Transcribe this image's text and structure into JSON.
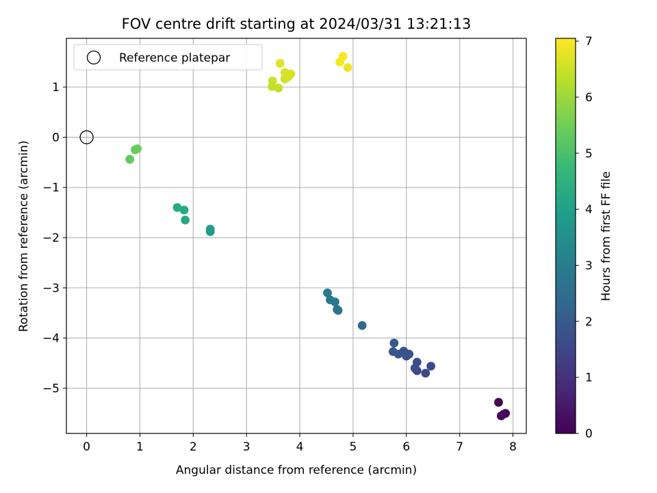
{
  "chart_data": {
    "type": "scatter",
    "title": "FOV centre drift starting at 2024/03/31 13:21:13",
    "xlabel": "Angular distance from reference (arcmin)",
    "ylabel": "Rotation from reference (arcmin)",
    "xlim": [
      -0.38,
      8.25
    ],
    "ylim": [
      -5.9,
      1.97
    ],
    "xticks": [
      0,
      1,
      2,
      3,
      4,
      5,
      6,
      7,
      8
    ],
    "yticks": [
      -5,
      -4,
      -3,
      -2,
      -1,
      0,
      1
    ],
    "xtick_labels": [
      "0",
      "1",
      "2",
      "3",
      "4",
      "5",
      "6",
      "7",
      "8"
    ],
    "ytick_labels": [
      "−5",
      "−4",
      "−3",
      "−2",
      "−1",
      "0",
      "1"
    ],
    "grid": true,
    "legend": {
      "placement": "top-left",
      "entries": [
        "Reference platepar"
      ]
    },
    "reference_point": {
      "x": 0,
      "y": 0,
      "marker": "open-circle"
    },
    "colorbar": {
      "label": "Hours from first FF file",
      "min": 0,
      "max": 7.05,
      "ticks": [
        0,
        1,
        2,
        3,
        4,
        5,
        6,
        7
      ],
      "tick_labels": [
        "0",
        "1",
        "2",
        "3",
        "4",
        "5",
        "6",
        "7"
      ],
      "colormap": "viridis"
    },
    "points": [
      {
        "x": 7.73,
        "y": -5.28,
        "c": 0.05
      },
      {
        "x": 7.78,
        "y": -5.55,
        "c": 0.1
      },
      {
        "x": 7.86,
        "y": -5.5,
        "c": 0.15
      },
      {
        "x": 7.82,
        "y": -5.52,
        "c": 0.2
      },
      {
        "x": 6.36,
        "y": -4.7,
        "c": 1.5
      },
      {
        "x": 6.46,
        "y": -4.56,
        "c": 1.6
      },
      {
        "x": 6.2,
        "y": -4.65,
        "c": 1.55
      },
      {
        "x": 6.16,
        "y": -4.6,
        "c": 1.65
      },
      {
        "x": 6.2,
        "y": -4.48,
        "c": 1.7
      },
      {
        "x": 6.05,
        "y": -4.32,
        "c": 1.75
      },
      {
        "x": 6.0,
        "y": -4.36,
        "c": 1.8
      },
      {
        "x": 5.95,
        "y": -4.26,
        "c": 1.85
      },
      {
        "x": 5.85,
        "y": -4.32,
        "c": 1.9
      },
      {
        "x": 5.75,
        "y": -4.27,
        "c": 1.95
      },
      {
        "x": 5.77,
        "y": -4.1,
        "c": 2.0
      },
      {
        "x": 5.17,
        "y": -3.75,
        "c": 2.4
      },
      {
        "x": 4.72,
        "y": -3.45,
        "c": 2.7
      },
      {
        "x": 4.7,
        "y": -3.43,
        "c": 2.72
      },
      {
        "x": 4.66,
        "y": -3.28,
        "c": 2.78
      },
      {
        "x": 4.57,
        "y": -3.24,
        "c": 2.82
      },
      {
        "x": 4.52,
        "y": -3.1,
        "c": 2.88
      },
      {
        "x": 2.32,
        "y": -1.88,
        "c": 3.9
      },
      {
        "x": 2.32,
        "y": -1.83,
        "c": 3.95
      },
      {
        "x": 1.85,
        "y": -1.65,
        "c": 4.2
      },
      {
        "x": 1.83,
        "y": -1.45,
        "c": 4.25
      },
      {
        "x": 1.7,
        "y": -1.4,
        "c": 4.3
      },
      {
        "x": 0.81,
        "y": -0.44,
        "c": 5.3
      },
      {
        "x": 0.91,
        "y": -0.25,
        "c": 5.35
      },
      {
        "x": 0.95,
        "y": -0.23,
        "c": 5.4
      },
      {
        "x": 3.48,
        "y": 1.01,
        "c": 6.4
      },
      {
        "x": 3.6,
        "y": 0.98,
        "c": 6.45
      },
      {
        "x": 3.49,
        "y": 1.12,
        "c": 6.5
      },
      {
        "x": 3.72,
        "y": 1.16,
        "c": 6.55
      },
      {
        "x": 3.78,
        "y": 1.2,
        "c": 6.6
      },
      {
        "x": 3.83,
        "y": 1.26,
        "c": 6.62
      },
      {
        "x": 3.72,
        "y": 1.29,
        "c": 6.65
      },
      {
        "x": 3.63,
        "y": 1.47,
        "c": 6.7
      },
      {
        "x": 4.9,
        "y": 1.39,
        "c": 6.9
      },
      {
        "x": 4.75,
        "y": 1.5,
        "c": 6.95
      },
      {
        "x": 4.81,
        "y": 1.61,
        "c": 7.0
      }
    ]
  }
}
